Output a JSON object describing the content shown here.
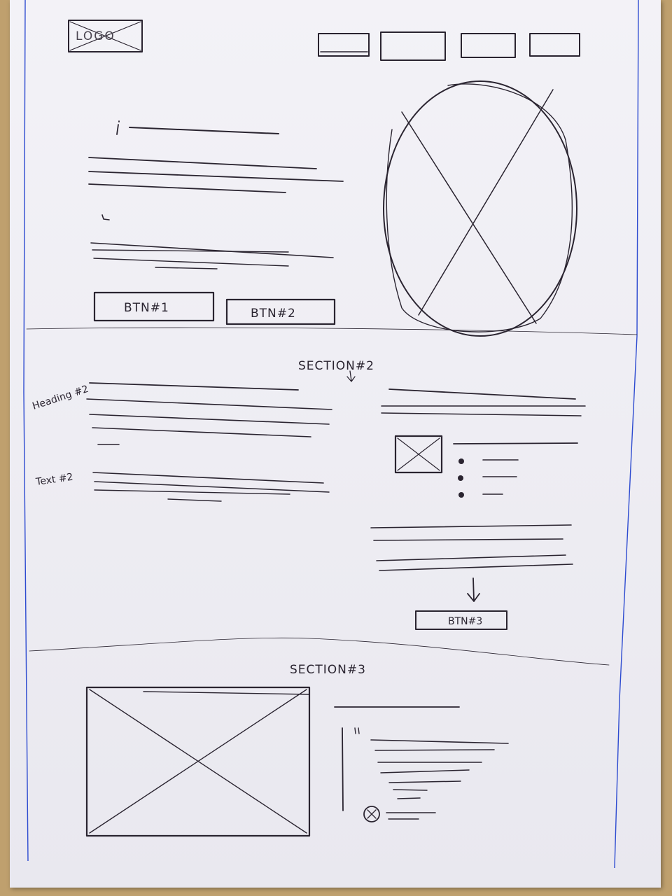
{
  "header": {
    "logo_label": "LOGO"
  },
  "hero": {
    "btn1_label": "BTN#1",
    "btn2_label": "BTN#2"
  },
  "section2": {
    "title": "SECTION#2",
    "heading_note": "Heading #2",
    "text_note": "Text #2",
    "btn3_label": "BTN#3"
  },
  "section3": {
    "title": "SECTION#3"
  }
}
